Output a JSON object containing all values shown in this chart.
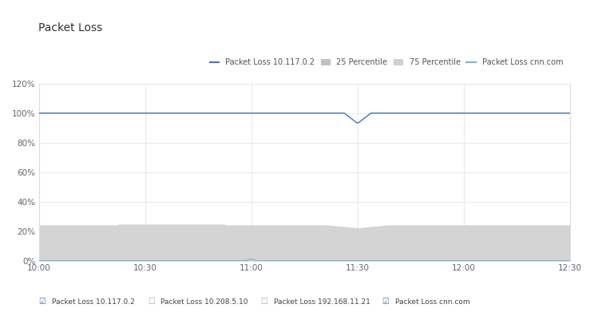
{
  "title": "Packet Loss",
  "x_ticks": [
    "10:00",
    "10:30",
    "11:00",
    "11:30",
    "12:00",
    "12:30"
  ],
  "ylim": [
    0,
    1.2
  ],
  "yticks": [
    0.0,
    0.2,
    0.4,
    0.6,
    0.8,
    1.0,
    1.2
  ],
  "yticklabels": [
    "0%",
    "20%",
    "40%",
    "60%",
    "80%",
    "100%",
    "120%"
  ],
  "bg_color": "#ffffff",
  "plot_bg_color": "#ffffff",
  "grid_color": "#e8e8e8",
  "line_color_10117": "#4472c4",
  "line_color_cnn": "#70b8d4",
  "fill_color": "#d4d4d4",
  "legend_labels": [
    "Packet Loss 10.117.0.2",
    "25 Percentile",
    "75 Percentile",
    "Packet Loss cnn.com"
  ],
  "legend_colors_line": [
    "#4472c4",
    null,
    null,
    "#70b8d4"
  ],
  "legend_colors_patch": [
    null,
    "#c0c0c0",
    "#d0d0d0",
    null
  ],
  "checkbox_labels": [
    "Packet Loss 10.117.0.2",
    "Packet Loss 10.208.5.10",
    "Packet Loss 192.168.11.21",
    "Packet Loss cnn.com"
  ],
  "checkbox_checked": [
    true,
    false,
    false,
    true
  ],
  "checkbox_colors": [
    "#4472c4",
    "#888888",
    "#888888",
    "#4472c4"
  ],
  "title_fontsize": 10,
  "tick_fontsize": 7.5,
  "legend_fontsize": 7
}
